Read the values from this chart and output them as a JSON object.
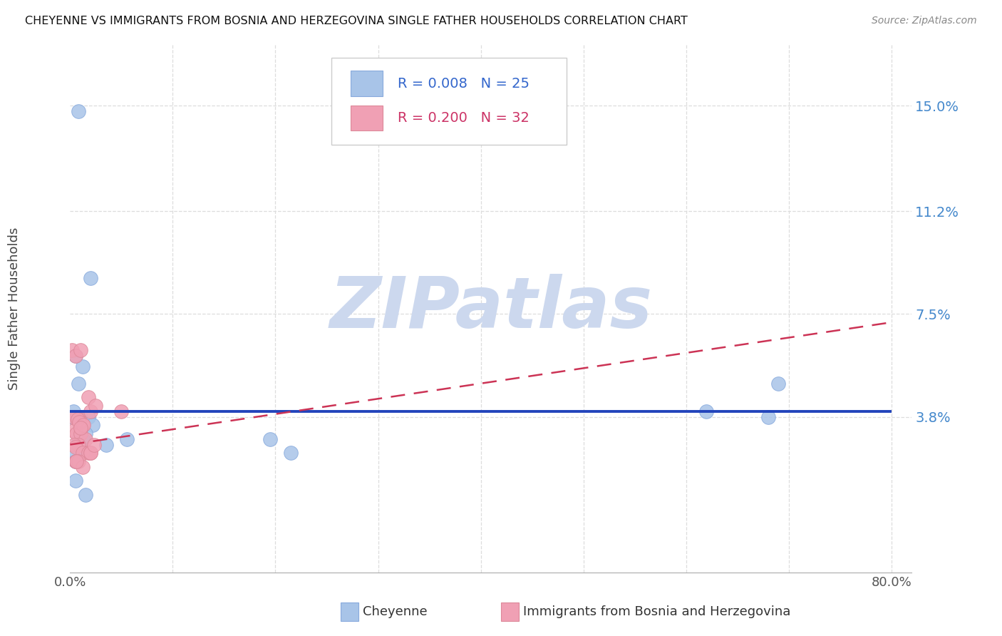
{
  "title": "CHEYENNE VS IMMIGRANTS FROM BOSNIA AND HERZEGOVINA SINGLE FATHER HOUSEHOLDS CORRELATION CHART",
  "source": "Source: ZipAtlas.com",
  "ylabel": "Single Father Households",
  "xlim": [
    0.0,
    0.82
  ],
  "ylim": [
    -0.018,
    0.172
  ],
  "ytick_vals": [
    0.038,
    0.075,
    0.112,
    0.15
  ],
  "ytick_labels": [
    "3.8%",
    "7.5%",
    "11.2%",
    "15.0%"
  ],
  "xtick_vals": [
    0.0,
    0.1,
    0.2,
    0.3,
    0.4,
    0.5,
    0.6,
    0.7,
    0.8
  ],
  "xtick_labels": [
    "0.0%",
    "",
    "",
    "",
    "",
    "",
    "",
    "",
    "80.0%"
  ],
  "blue_color": "#a8c4e8",
  "pink_color": "#f0a0b4",
  "blue_line_color": "#2244bb",
  "pink_line_color": "#cc3355",
  "legend_border_color": "#cccccc",
  "legend_R_blue": "R = 0.008",
  "legend_N_blue": "N = 25",
  "legend_R_pink": "R = 0.200",
  "legend_N_pink": "N = 32",
  "legend_blue_color": "#3366cc",
  "legend_pink_color": "#cc3366",
  "watermark": "ZIPatlas",
  "watermark_color": "#ccd8ee",
  "grid_color": "#dddddd",
  "blue_x": [
    0.008,
    0.02,
    0.005,
    0.012,
    0.008,
    0.003,
    0.01,
    0.018,
    0.022,
    0.008,
    0.015,
    0.01,
    0.005,
    0.035,
    0.005,
    0.002,
    0.012,
    0.055,
    0.195,
    0.215,
    0.62,
    0.68,
    0.69,
    0.015,
    0.005
  ],
  "blue_y": [
    0.148,
    0.088,
    0.06,
    0.056,
    0.05,
    0.04,
    0.038,
    0.038,
    0.035,
    0.03,
    0.032,
    0.03,
    0.025,
    0.028,
    0.022,
    0.038,
    0.03,
    0.03,
    0.03,
    0.025,
    0.04,
    0.038,
    0.05,
    0.01,
    0.015
  ],
  "pink_x": [
    0.002,
    0.005,
    0.008,
    0.01,
    0.012,
    0.003,
    0.006,
    0.01,
    0.015,
    0.008,
    0.004,
    0.005,
    0.012,
    0.018,
    0.006,
    0.003,
    0.007,
    0.009,
    0.013,
    0.01,
    0.05,
    0.005,
    0.008,
    0.012,
    0.006,
    0.018,
    0.02,
    0.025,
    0.02,
    0.02,
    0.023,
    0.01
  ],
  "pink_y": [
    0.062,
    0.06,
    0.038,
    0.036,
    0.035,
    0.033,
    0.032,
    0.032,
    0.03,
    0.028,
    0.028,
    0.027,
    0.025,
    0.025,
    0.038,
    0.038,
    0.037,
    0.036,
    0.035,
    0.034,
    0.04,
    0.022,
    0.022,
    0.02,
    0.022,
    0.045,
    0.04,
    0.042,
    0.025,
    0.025,
    0.028,
    0.062
  ],
  "blue_line_x": [
    0.0,
    0.8
  ],
  "blue_line_y": [
    0.04,
    0.04
  ],
  "pink_line_x": [
    0.0,
    0.8
  ],
  "pink_line_y": [
    0.028,
    0.072
  ],
  "bottom_legend_blue_label": "Cheyenne",
  "bottom_legend_pink_label": "Immigrants from Bosnia and Herzegovina"
}
